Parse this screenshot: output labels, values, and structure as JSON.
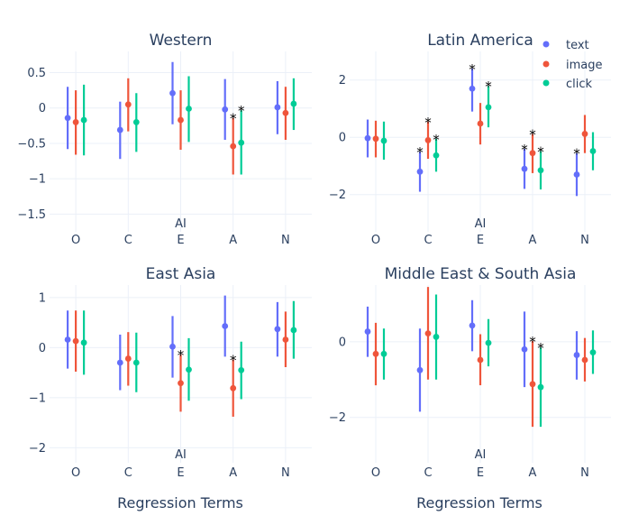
{
  "legend": {
    "items": [
      {
        "name": "text",
        "color": "#636efa"
      },
      {
        "name": "image",
        "color": "#ef553b"
      },
      {
        "name": "click",
        "color": "#00cc96"
      }
    ]
  },
  "x_axis_title": "Regression Terms",
  "chart_data": [
    {
      "type": "scatter",
      "title": "Western",
      "categories": [
        "O",
        "C",
        "E",
        "A",
        "N"
      ],
      "category_label": "AI",
      "ylim": [
        -1.75,
        0.8
      ],
      "yticks": [
        0.5,
        0,
        -0.5,
        -1,
        -1.5
      ],
      "ytick_labels": [
        "0.5",
        "0",
        "−0.5",
        "−1",
        "−1.5"
      ],
      "series": [
        {
          "name": "text",
          "values": [
            -0.14,
            -0.31,
            0.21,
            -0.02,
            0.01
          ],
          "lower": [
            -0.58,
            -0.72,
            -0.23,
            -0.45,
            -0.37
          ],
          "upper": [
            0.3,
            0.09,
            0.65,
            0.41,
            0.38
          ],
          "significant": [
            false,
            false,
            false,
            false,
            false
          ]
        },
        {
          "name": "image",
          "values": [
            -0.2,
            0.05,
            -0.17,
            -0.54,
            -0.07
          ],
          "lower": [
            -0.66,
            -0.33,
            -0.59,
            -0.94,
            -0.45
          ],
          "upper": [
            0.25,
            0.42,
            0.25,
            -0.14,
            0.3
          ],
          "significant": [
            false,
            false,
            false,
            true,
            false
          ]
        },
        {
          "name": "click",
          "values": [
            -0.17,
            -0.2,
            -0.01,
            -0.49,
            0.06
          ],
          "lower": [
            -0.67,
            -0.62,
            -0.48,
            -0.94,
            -0.31
          ],
          "upper": [
            0.33,
            0.21,
            0.45,
            -0.03,
            0.42
          ],
          "significant": [
            false,
            false,
            false,
            true,
            false
          ]
        }
      ]
    },
    {
      "type": "scatter",
      "title": "Latin America",
      "categories": [
        "O",
        "C",
        "E",
        "A",
        "N"
      ],
      "category_label": "AI",
      "ylim": [
        -3.3,
        3.0
      ],
      "yticks": [
        2,
        0,
        -2
      ],
      "ytick_labels": [
        "2",
        "0",
        "−2"
      ],
      "series": [
        {
          "name": "text",
          "values": [
            -0.03,
            -1.2,
            1.7,
            -1.1,
            -1.3
          ],
          "lower": [
            -0.7,
            -1.9,
            0.9,
            -1.8,
            -2.05
          ],
          "upper": [
            0.62,
            -0.5,
            2.4,
            -0.4,
            -0.55
          ],
          "significant": [
            false,
            true,
            true,
            true,
            true
          ]
        },
        {
          "name": "image",
          "values": [
            -0.05,
            -0.1,
            0.48,
            -0.55,
            0.12
          ],
          "lower": [
            -0.7,
            -0.75,
            -0.25,
            -1.25,
            -0.55
          ],
          "upper": [
            0.58,
            0.55,
            1.2,
            0.12,
            0.78
          ],
          "significant": [
            false,
            true,
            false,
            true,
            false
          ]
        },
        {
          "name": "click",
          "values": [
            -0.12,
            -0.63,
            1.05,
            -1.15,
            -0.48
          ],
          "lower": [
            -0.78,
            -1.2,
            0.35,
            -1.82,
            -1.15
          ],
          "upper": [
            0.55,
            -0.05,
            1.8,
            -0.48,
            0.18
          ],
          "significant": [
            false,
            true,
            true,
            true,
            false
          ]
        }
      ]
    },
    {
      "type": "scatter",
      "title": "East Asia",
      "categories": [
        "O",
        "C",
        "E",
        "A",
        "N"
      ],
      "category_label": "AI",
      "ylim": [
        -2.3,
        1.25
      ],
      "yticks": [
        1,
        0,
        -1,
        -2
      ],
      "ytick_labels": [
        "1",
        "0",
        "−1",
        "−2"
      ],
      "series": [
        {
          "name": "text",
          "values": [
            0.16,
            -0.3,
            0.02,
            0.43,
            0.37
          ],
          "lower": [
            -0.42,
            -0.85,
            -0.6,
            -0.18,
            -0.18
          ],
          "upper": [
            0.74,
            0.26,
            0.63,
            1.04,
            0.91
          ],
          "significant": [
            false,
            false,
            false,
            false,
            false
          ]
        },
        {
          "name": "image",
          "values": [
            0.13,
            -0.22,
            -0.71,
            -0.81,
            0.16
          ],
          "lower": [
            -0.48,
            -0.76,
            -1.28,
            -1.38,
            -0.39
          ],
          "upper": [
            0.74,
            0.31,
            -0.14,
            -0.24,
            0.72
          ],
          "significant": [
            false,
            false,
            true,
            true,
            false
          ]
        },
        {
          "name": "click",
          "values": [
            0.1,
            -0.3,
            -0.44,
            -0.45,
            0.35
          ],
          "lower": [
            -0.54,
            -0.89,
            -1.06,
            -1.03,
            -0.22
          ],
          "upper": [
            0.74,
            0.3,
            0.19,
            0.12,
            0.93
          ],
          "significant": [
            false,
            false,
            false,
            false,
            false
          ]
        }
      ]
    },
    {
      "type": "scatter",
      "title": "Middle East & South Asia",
      "categories": [
        "O",
        "C",
        "E",
        "A",
        "N"
      ],
      "category_label": "AI",
      "ylim": [
        -3.2,
        1.5
      ],
      "yticks": [
        0,
        -2
      ],
      "ytick_labels": [
        "0",
        "−2"
      ],
      "series": [
        {
          "name": "text",
          "values": [
            0.27,
            -0.75,
            0.43,
            -0.2,
            -0.35
          ],
          "lower": [
            -0.4,
            -1.85,
            -0.25,
            -1.2,
            -1.0
          ],
          "upper": [
            0.93,
            0.35,
            1.1,
            0.8,
            0.28
          ],
          "significant": [
            false,
            false,
            false,
            false,
            false
          ]
        },
        {
          "name": "image",
          "values": [
            -0.32,
            0.22,
            -0.48,
            -1.12,
            -0.48
          ],
          "lower": [
            -1.15,
            -1.0,
            -1.15,
            -2.25,
            -1.05
          ],
          "upper": [
            0.5,
            1.45,
            0.2,
            0.02,
            0.1
          ],
          "significant": [
            false,
            false,
            false,
            true,
            false
          ]
        },
        {
          "name": "click",
          "values": [
            -0.32,
            0.13,
            -0.03,
            -1.2,
            -0.28
          ],
          "lower": [
            -1.0,
            -1.0,
            -0.65,
            -2.25,
            -0.85
          ],
          "upper": [
            0.35,
            1.25,
            0.6,
            -0.15,
            0.3
          ],
          "significant": [
            false,
            false,
            false,
            true,
            false
          ]
        }
      ]
    }
  ]
}
